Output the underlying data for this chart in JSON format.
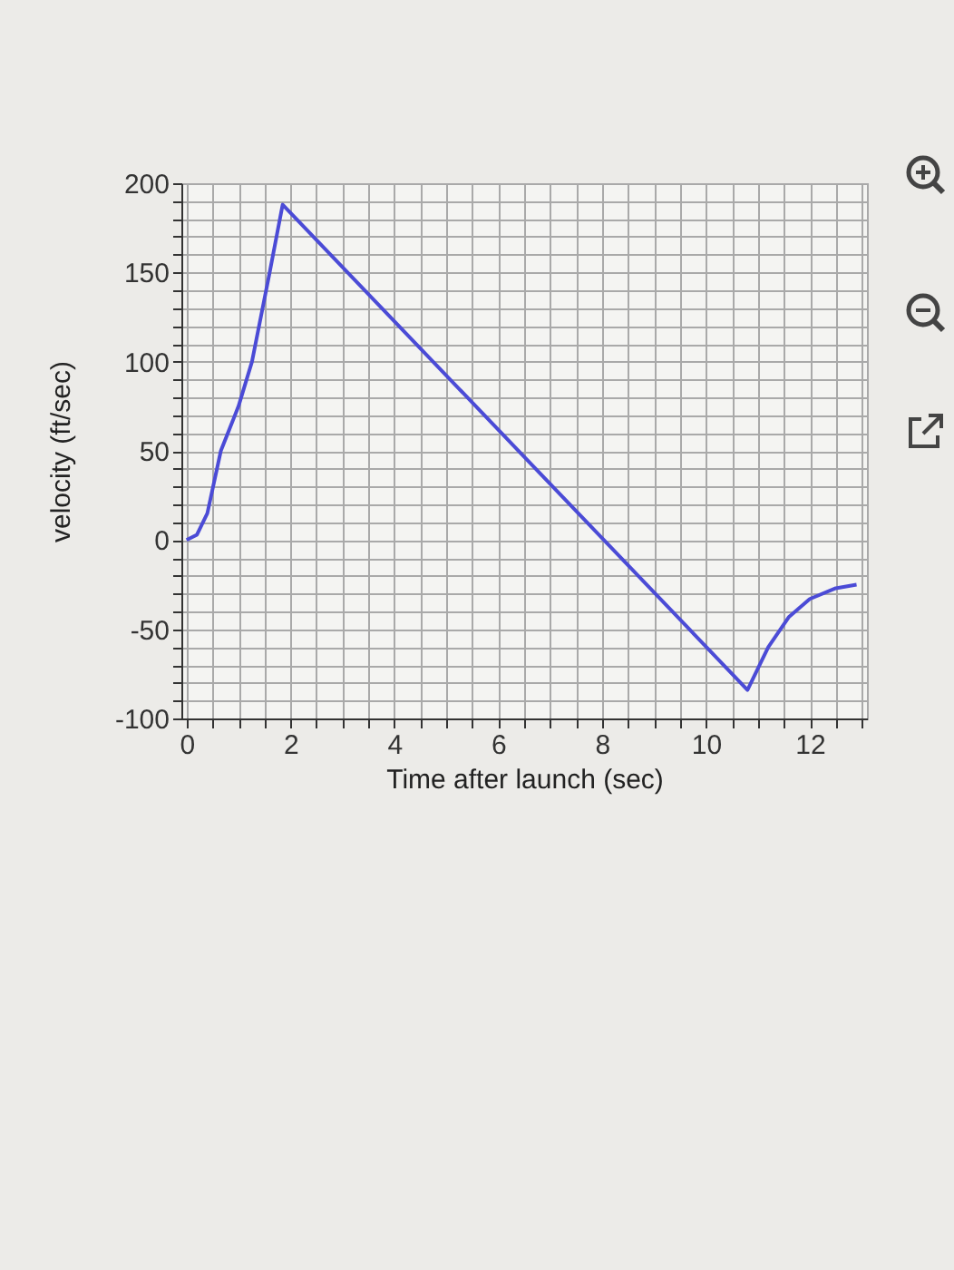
{
  "chart_data": {
    "type": "line",
    "xlabel": "Time after launch (sec)",
    "ylabel": "velocity (ft/sec)",
    "x": [
      0,
      0.2,
      0.4,
      0.66,
      1.0,
      1.26,
      1.6,
      1.85,
      10.8,
      11.2,
      11.6,
      12.0,
      12.5,
      12.9
    ],
    "series": [
      {
        "color": "#4b4bd6",
        "values": [
          0,
          3,
          15,
          50,
          75,
          100,
          150,
          188,
          -84,
          -60,
          -43,
          -33,
          -27,
          -25
        ]
      }
    ],
    "xlim": [
      -0.1,
      13.1
    ],
    "ylim": [
      -100,
      200
    ],
    "xticks": [
      0,
      {
        "value": 0.5,
        "label": null
      },
      {
        "value": 1,
        "label": null
      },
      {
        "value": 1.5,
        "label": null
      },
      2,
      {
        "value": 2.5,
        "label": null
      },
      {
        "value": 3,
        "label": null
      },
      {
        "value": 3.5,
        "label": null
      },
      4,
      {
        "value": 4.5,
        "label": null
      },
      {
        "value": 5,
        "label": null
      },
      {
        "value": 5.5,
        "label": null
      },
      6,
      {
        "value": 6.5,
        "label": null
      },
      {
        "value": 7,
        "label": null
      },
      {
        "value": 7.5,
        "label": null
      },
      8,
      {
        "value": 8.5,
        "label": null
      },
      {
        "value": 9,
        "label": null
      },
      {
        "value": 9.5,
        "label": null
      },
      10,
      {
        "value": 10.5,
        "label": null
      },
      {
        "value": 11,
        "label": null
      },
      {
        "value": 11.5,
        "label": null
      },
      12,
      {
        "value": 12.5,
        "label": null
      },
      {
        "value": 13,
        "label": null
      }
    ],
    "yticks": [
      -100,
      {
        "value": -90,
        "label": null
      },
      {
        "value": -80,
        "label": null
      },
      {
        "value": -70,
        "label": null
      },
      {
        "value": -60,
        "label": null
      },
      -50,
      {
        "value": -40,
        "label": null
      },
      {
        "value": -30,
        "label": null
      },
      {
        "value": -20,
        "label": null
      },
      {
        "value": -10,
        "label": null
      },
      0,
      {
        "value": 10,
        "label": null
      },
      {
        "value": 20,
        "label": null
      },
      {
        "value": 30,
        "label": null
      },
      {
        "value": 40,
        "label": null
      },
      50,
      {
        "value": 60,
        "label": null
      },
      {
        "value": 70,
        "label": null
      },
      {
        "value": 80,
        "label": null
      },
      {
        "value": 90,
        "label": null
      },
      100,
      {
        "value": 110,
        "label": null
      },
      {
        "value": 120,
        "label": null
      },
      {
        "value": 130,
        "label": null
      },
      {
        "value": 140,
        "label": null
      },
      150,
      {
        "value": 160,
        "label": null
      },
      {
        "value": 170,
        "label": null
      },
      {
        "value": 180,
        "label": null
      },
      {
        "value": 190,
        "label": null
      },
      200
    ],
    "grid": true,
    "marker": "none",
    "line_style": "solid"
  }
}
